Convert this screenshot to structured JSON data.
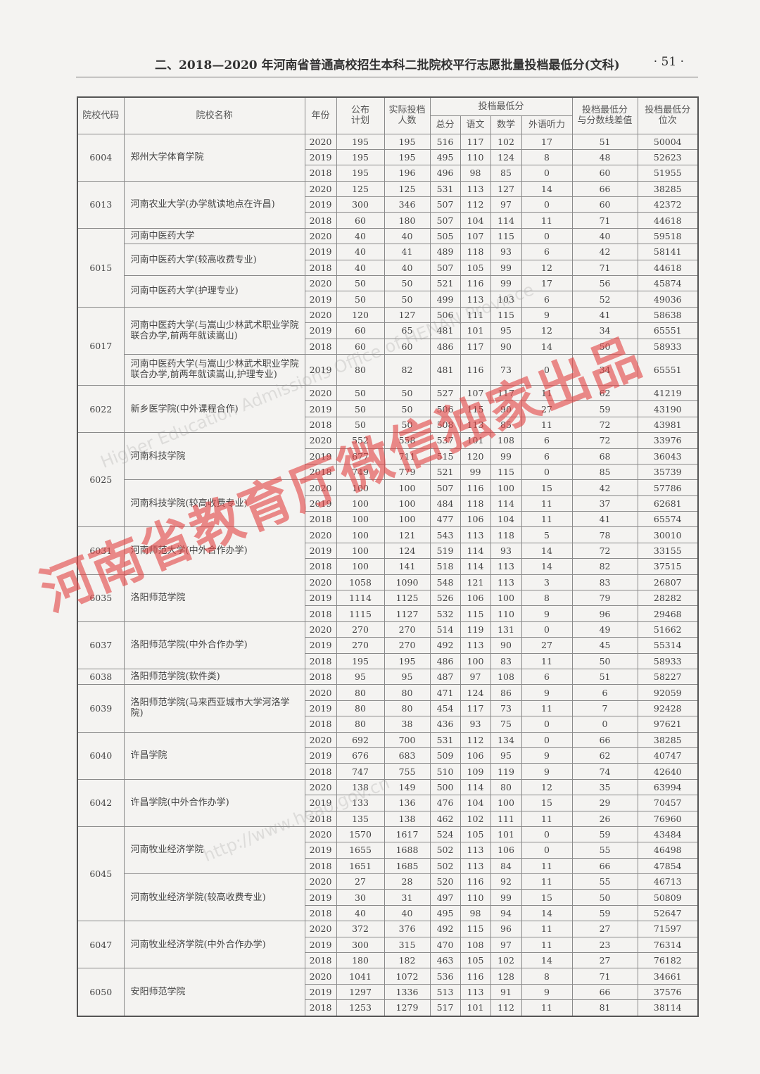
{
  "header": {
    "title": "二、2018—2020 年河南省普通高校招生本科二批院校平行志愿批量投档最低分(文科)",
    "page_number": "· 51 ·"
  },
  "table": {
    "headers": {
      "code": "院校代码",
      "name": "院校名称",
      "year": "年份",
      "plan": "公布\n计划",
      "actual": "实际投档\n人数",
      "min_score": "投档最低分",
      "total": "总分",
      "chinese": "语文",
      "math": "数学",
      "listening": "外语听力",
      "diff": "投档最低分\n与分数线差值",
      "rank": "投档最低分\n位次"
    },
    "groups": [
      {
        "code": "6004",
        "programs": [
          {
            "name": "郑州大学体育学院",
            "rows": [
              [
                "2020",
                "195",
                "195",
                "516",
                "117",
                "102",
                "17",
                "51",
                "50004"
              ],
              [
                "2019",
                "195",
                "195",
                "495",
                "110",
                "124",
                "8",
                "48",
                "52623"
              ],
              [
                "2018",
                "195",
                "196",
                "496",
                "98",
                "85",
                "0",
                "60",
                "51955"
              ]
            ]
          }
        ]
      },
      {
        "code": "6013",
        "programs": [
          {
            "name": "河南农业大学(办学就读地点在许昌)",
            "rows": [
              [
                "2020",
                "125",
                "125",
                "531",
                "113",
                "127",
                "14",
                "66",
                "38285"
              ],
              [
                "2019",
                "300",
                "346",
                "507",
                "112",
                "97",
                "0",
                "60",
                "42372"
              ],
              [
                "2018",
                "60",
                "180",
                "507",
                "104",
                "114",
                "11",
                "71",
                "44618"
              ]
            ]
          }
        ]
      },
      {
        "code": "6015",
        "programs": [
          {
            "name": "河南中医药大学",
            "rows": [
              [
                "2020",
                "40",
                "40",
                "505",
                "107",
                "115",
                "0",
                "40",
                "59518"
              ]
            ]
          },
          {
            "name": "河南中医药大学(较高收费专业)",
            "rows": [
              [
                "2019",
                "40",
                "41",
                "489",
                "118",
                "93",
                "6",
                "42",
                "58141"
              ],
              [
                "2018",
                "40",
                "40",
                "507",
                "105",
                "99",
                "12",
                "71",
                "44618"
              ]
            ]
          },
          {
            "name": "河南中医药大学(护理专业)",
            "rows": [
              [
                "2020",
                "50",
                "50",
                "521",
                "116",
                "99",
                "17",
                "56",
                "45874"
              ],
              [
                "2019",
                "50",
                "50",
                "499",
                "113",
                "103",
                "6",
                "52",
                "49036"
              ]
            ]
          }
        ]
      },
      {
        "code": "6017",
        "programs": [
          {
            "name": "河南中医药大学(与嵩山少林武术职业学院联合办学,前两年就读嵩山)",
            "rows": [
              [
                "2020",
                "120",
                "127",
                "506",
                "111",
                "115",
                "9",
                "41",
                "58638"
              ],
              [
                "2019",
                "60",
                "65",
                "481",
                "101",
                "95",
                "12",
                "34",
                "65551"
              ],
              [
                "2018",
                "60",
                "60",
                "486",
                "117",
                "90",
                "14",
                "50",
                "58933"
              ]
            ]
          },
          {
            "name": "河南中医药大学(与嵩山少林武术职业学院联合办学,前两年就读嵩山,护理专业)",
            "double": true,
            "rows": [
              [
                "2019",
                "80",
                "82",
                "481",
                "116",
                "73",
                "0",
                "34",
                "65551"
              ]
            ]
          }
        ]
      },
      {
        "code": "6022",
        "programs": [
          {
            "name": "新乡医学院(中外课程合作)",
            "rows": [
              [
                "2020",
                "50",
                "50",
                "527",
                "107",
                "117",
                "11",
                "62",
                "41219"
              ],
              [
                "2019",
                "50",
                "50",
                "506",
                "115",
                "90",
                "27",
                "59",
                "43190"
              ],
              [
                "2018",
                "50",
                "50",
                "508",
                "113",
                "85",
                "11",
                "72",
                "43981"
              ]
            ]
          }
        ]
      },
      {
        "code": "6025",
        "programs": [
          {
            "name": "河南科技学院",
            "rows": [
              [
                "2020",
                "552",
                "558",
                "537",
                "101",
                "108",
                "6",
                "72",
                "33976"
              ],
              [
                "2019",
                "677",
                "711",
                "515",
                "120",
                "99",
                "6",
                "68",
                "36043"
              ],
              [
                "2018",
                "749",
                "779",
                "521",
                "99",
                "115",
                "0",
                "85",
                "35739"
              ]
            ]
          },
          {
            "name": "河南科技学院(较高收费专业)",
            "rows": [
              [
                "2020",
                "100",
                "100",
                "507",
                "116",
                "100",
                "15",
                "42",
                "57786"
              ],
              [
                "2019",
                "100",
                "100",
                "484",
                "118",
                "114",
                "11",
                "37",
                "62681"
              ],
              [
                "2018",
                "100",
                "100",
                "477",
                "106",
                "104",
                "11",
                "41",
                "65574"
              ]
            ]
          }
        ]
      },
      {
        "code": "6031",
        "programs": [
          {
            "name": "河南师范大学(中外合作办学)",
            "rows": [
              [
                "2020",
                "100",
                "121",
                "543",
                "113",
                "118",
                "5",
                "78",
                "30010"
              ],
              [
                "2019",
                "100",
                "124",
                "519",
                "114",
                "93",
                "14",
                "72",
                "33155"
              ],
              [
                "2018",
                "100",
                "141",
                "518",
                "114",
                "113",
                "14",
                "82",
                "37515"
              ]
            ]
          }
        ]
      },
      {
        "code": "6035",
        "programs": [
          {
            "name": "洛阳师范学院",
            "rows": [
              [
                "2020",
                "1058",
                "1090",
                "548",
                "121",
                "113",
                "3",
                "83",
                "26807"
              ],
              [
                "2019",
                "1114",
                "1125",
                "526",
                "106",
                "100",
                "8",
                "79",
                "28282"
              ],
              [
                "2018",
                "1115",
                "1127",
                "532",
                "115",
                "110",
                "9",
                "96",
                "29468"
              ]
            ]
          }
        ]
      },
      {
        "code": "6037",
        "programs": [
          {
            "name": "洛阳师范学院(中外合作办学)",
            "rows": [
              [
                "2020",
                "270",
                "270",
                "514",
                "119",
                "131",
                "0",
                "49",
                "51662"
              ],
              [
                "2019",
                "270",
                "270",
                "492",
                "113",
                "90",
                "27",
                "45",
                "55314"
              ],
              [
                "2018",
                "195",
                "195",
                "486",
                "100",
                "83",
                "11",
                "50",
                "58933"
              ]
            ]
          }
        ]
      },
      {
        "code": "6038",
        "programs": [
          {
            "name": "洛阳师范学院(软件类)",
            "rows": [
              [
                "2018",
                "95",
                "95",
                "487",
                "97",
                "108",
                "6",
                "51",
                "58227"
              ]
            ]
          }
        ]
      },
      {
        "code": "6039",
        "programs": [
          {
            "name": "洛阳师范学院(马来西亚城市大学河洛学院)",
            "rows": [
              [
                "2020",
                "80",
                "80",
                "471",
                "124",
                "86",
                "9",
                "6",
                "92059"
              ],
              [
                "2019",
                "80",
                "80",
                "454",
                "117",
                "73",
                "11",
                "7",
                "92428"
              ],
              [
                "2018",
                "80",
                "38",
                "436",
                "93",
                "75",
                "0",
                "0",
                "97621"
              ]
            ]
          }
        ]
      },
      {
        "code": "6040",
        "programs": [
          {
            "name": "许昌学院",
            "rows": [
              [
                "2020",
                "692",
                "700",
                "531",
                "112",
                "134",
                "0",
                "66",
                "38285"
              ],
              [
                "2019",
                "676",
                "683",
                "509",
                "106",
                "95",
                "9",
                "62",
                "40747"
              ],
              [
                "2018",
                "747",
                "755",
                "510",
                "109",
                "119",
                "9",
                "74",
                "42640"
              ]
            ]
          }
        ]
      },
      {
        "code": "6042",
        "programs": [
          {
            "name": "许昌学院(中外合作办学)",
            "rows": [
              [
                "2020",
                "138",
                "149",
                "500",
                "114",
                "80",
                "12",
                "35",
                "63994"
              ],
              [
                "2019",
                "133",
                "136",
                "476",
                "104",
                "100",
                "15",
                "29",
                "70457"
              ],
              [
                "2018",
                "135",
                "138",
                "462",
                "102",
                "111",
                "11",
                "26",
                "76960"
              ]
            ]
          }
        ]
      },
      {
        "code": "6045",
        "programs": [
          {
            "name": "河南牧业经济学院",
            "rows": [
              [
                "2020",
                "1570",
                "1617",
                "524",
                "105",
                "101",
                "0",
                "59",
                "43484"
              ],
              [
                "2019",
                "1655",
                "1688",
                "502",
                "113",
                "106",
                "0",
                "55",
                "46498"
              ],
              [
                "2018",
                "1651",
                "1685",
                "502",
                "113",
                "84",
                "11",
                "66",
                "47854"
              ]
            ]
          },
          {
            "name": "河南牧业经济学院(较高收费专业)",
            "rows": [
              [
                "2020",
                "27",
                "28",
                "520",
                "116",
                "92",
                "11",
                "55",
                "46713"
              ],
              [
                "2019",
                "30",
                "31",
                "497",
                "110",
                "99",
                "15",
                "50",
                "50809"
              ],
              [
                "2018",
                "40",
                "40",
                "495",
                "98",
                "94",
                "14",
                "59",
                "52647"
              ]
            ]
          }
        ]
      },
      {
        "code": "6047",
        "programs": [
          {
            "name": "河南牧业经济学院(中外合作办学)",
            "rows": [
              [
                "2020",
                "372",
                "376",
                "492",
                "115",
                "96",
                "11",
                "27",
                "71597"
              ],
              [
                "2019",
                "300",
                "315",
                "470",
                "108",
                "97",
                "11",
                "23",
                "76314"
              ],
              [
                "2018",
                "180",
                "182",
                "463",
                "105",
                "102",
                "14",
                "27",
                "76182"
              ]
            ]
          }
        ]
      },
      {
        "code": "6050",
        "programs": [
          {
            "name": "安阳师范学院",
            "rows": [
              [
                "2020",
                "1041",
                "1072",
                "536",
                "116",
                "128",
                "8",
                "71",
                "34661"
              ],
              [
                "2019",
                "1297",
                "1336",
                "513",
                "113",
                "91",
                "9",
                "66",
                "37576"
              ],
              [
                "2018",
                "1253",
                "1279",
                "517",
                "101",
                "112",
                "11",
                "81",
                "38114"
              ]
            ]
          }
        ]
      }
    ]
  },
  "watermark": {
    "text": "河南省教育厅微信独家出品",
    "color": "#e24646",
    "grey_texts": [
      "Higher Education Admissions Office of HENAN Province",
      "http://www.heao.gov.cn"
    ]
  }
}
